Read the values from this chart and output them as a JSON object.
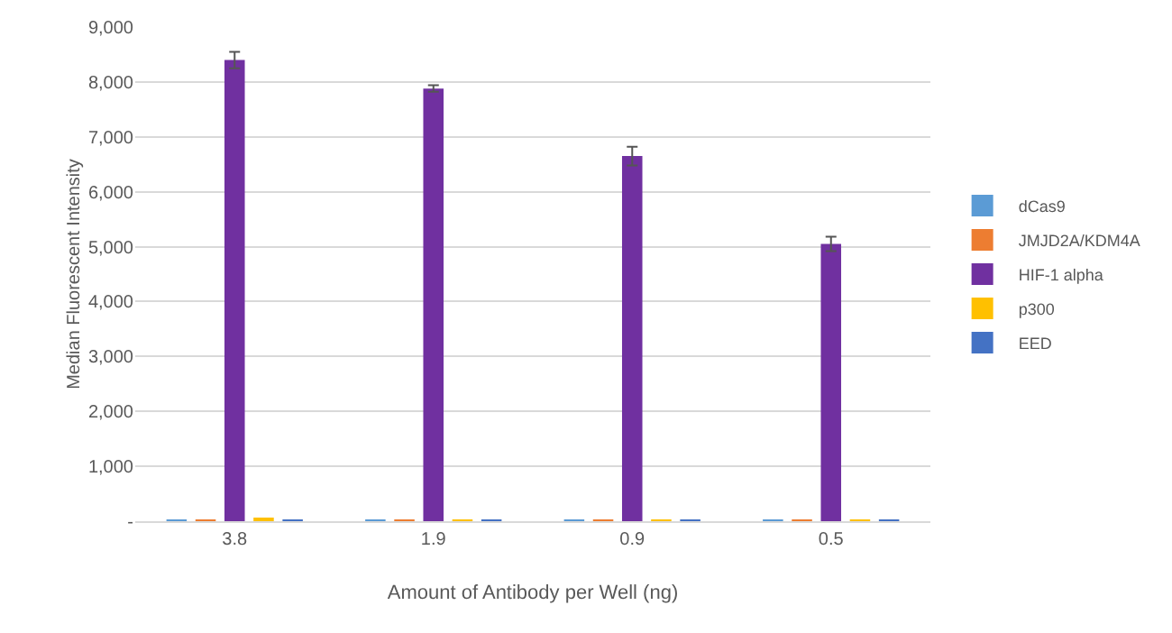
{
  "chart_data": {
    "type": "bar",
    "xlabel": "Amount of Antibody per Well (ng)",
    "ylabel": "Median Fluorescent Intensity",
    "categories": [
      "3.8",
      "1.9",
      "0.9",
      "0.5"
    ],
    "series": [
      {
        "name": "dCas9",
        "color": "#5b9bd5",
        "values": [
          30,
          30,
          30,
          30
        ]
      },
      {
        "name": "JMJD2A/KDM4A",
        "color": "#ed7d31",
        "values": [
          30,
          30,
          30,
          30
        ]
      },
      {
        "name": "HIF-1 alpha",
        "color": "#7030a0",
        "values": [
          8400,
          7880,
          6650,
          5050
        ],
        "errors": [
          150,
          60,
          170,
          130
        ]
      },
      {
        "name": "p300",
        "color": "#ffc000",
        "values": [
          60,
          30,
          30,
          30
        ]
      },
      {
        "name": "EED",
        "color": "#4472c4",
        "values": [
          30,
          30,
          30,
          30
        ]
      }
    ],
    "ylim": [
      0,
      9000
    ],
    "yticks": [
      {
        "value": 0,
        "label": "-"
      },
      {
        "value": 1000,
        "label": "1,000"
      },
      {
        "value": 2000,
        "label": "2,000"
      },
      {
        "value": 3000,
        "label": "3,000"
      },
      {
        "value": 4000,
        "label": "4,000"
      },
      {
        "value": 5000,
        "label": "5,000"
      },
      {
        "value": 6000,
        "label": "6,000"
      },
      {
        "value": 7000,
        "label": "7,000"
      },
      {
        "value": 8000,
        "label": "8,000"
      },
      {
        "value": 9000,
        "label": "9,000"
      }
    ],
    "grid": "y",
    "legend": "right"
  }
}
